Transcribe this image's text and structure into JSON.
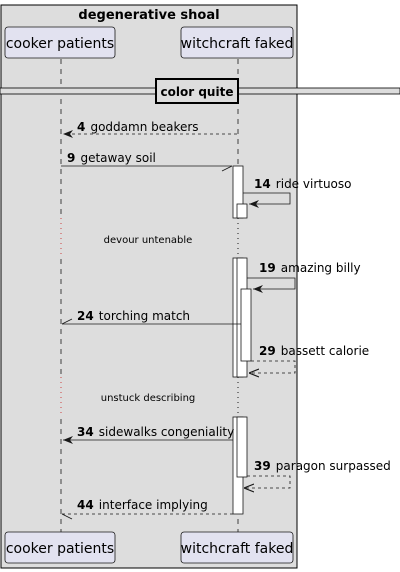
{
  "box": {
    "title": "degenerative shoal"
  },
  "participants": [
    {
      "id": "p1",
      "label": "cooker patients"
    },
    {
      "id": "p2",
      "label": "witchcraft faked"
    }
  ],
  "divider": {
    "label": "color quite"
  },
  "delays": [
    {
      "label": "devour untenable"
    },
    {
      "label": "unstuck describing"
    }
  ],
  "messages": [
    {
      "num": "4",
      "text": "goddamn beakers",
      "style": "dashed",
      "from": "p2",
      "to": "p1"
    },
    {
      "num": "9",
      "text": "getaway soil",
      "style": "solid",
      "from": "p1",
      "to": "p2"
    },
    {
      "num": "14",
      "text": "ride virtuoso",
      "style": "solid",
      "from": "p2",
      "to": "p2"
    },
    {
      "num": "19",
      "text": "amazing billy",
      "style": "solid",
      "from": "p2",
      "to": "p2"
    },
    {
      "num": "24",
      "text": "torching match",
      "style": "solid",
      "from": "p2",
      "to": "p1"
    },
    {
      "num": "29",
      "text": "bassett calorie",
      "style": "dashed",
      "from": "p2",
      "to": "p2"
    },
    {
      "num": "34",
      "text": "sidewalks congeniality",
      "style": "solid",
      "from": "p2",
      "to": "p1"
    },
    {
      "num": "39",
      "text": "paragon surpassed",
      "style": "dashed",
      "from": "p2",
      "to": "p2"
    },
    {
      "num": "44",
      "text": "interface implying",
      "style": "dashed",
      "from": "p2",
      "to": "p1"
    }
  ],
  "colors": {
    "box_fill": "#dddddd",
    "box_stroke": "#000000",
    "participant_fill": "#e2e2f0",
    "participant_stroke": "#181818",
    "lifeline": "#181818",
    "activation_fill": "#ffffff",
    "arrow": "#181818"
  }
}
